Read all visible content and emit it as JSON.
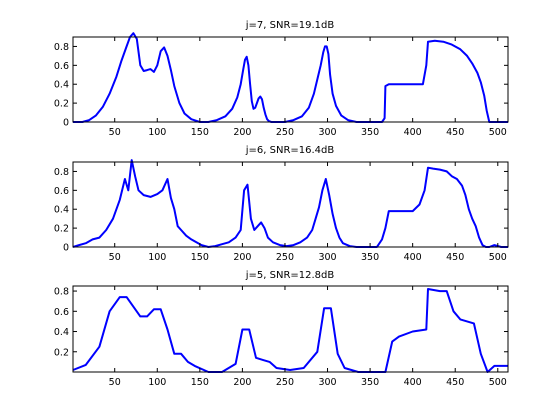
{
  "chart_data": [
    {
      "type": "line",
      "title": "j=7, SNR=19.1dB",
      "xlim": [
        1,
        512
      ],
      "ylim": [
        0,
        0.9
      ],
      "xticks": [
        50,
        100,
        150,
        200,
        250,
        300,
        350,
        400,
        450,
        500
      ],
      "yticks": [
        0,
        0.2,
        0.4,
        0.6,
        0.8
      ],
      "ytick_labels": [
        "0",
        "0.2",
        "0.4",
        "0.6",
        "0.8"
      ],
      "series": [
        {
          "color": "#0000ff",
          "x": [
            1,
            12,
            20,
            28,
            36,
            44,
            52,
            58,
            64,
            68,
            72,
            76,
            80,
            84,
            88,
            92,
            96,
            100,
            104,
            108,
            112,
            116,
            120,
            126,
            132,
            140,
            150,
            160,
            170,
            180,
            188,
            194,
            198,
            201,
            203,
            205,
            207,
            209,
            211,
            213,
            215,
            217,
            219,
            221,
            223,
            225,
            227,
            229,
            231,
            234,
            240,
            250,
            260,
            270,
            278,
            284,
            288,
            292,
            295,
            297,
            299,
            301,
            303,
            306,
            310,
            316,
            324,
            334,
            344,
            356,
            364,
            367,
            368,
            372,
            380,
            392,
            404,
            412,
            416,
            418,
            426,
            436,
            446,
            456,
            464,
            470,
            476,
            480,
            484,
            487,
            490,
            494,
            500,
            512
          ],
          "y": [
            0.0,
            0.0,
            0.02,
            0.07,
            0.16,
            0.3,
            0.48,
            0.65,
            0.8,
            0.9,
            0.94,
            0.88,
            0.6,
            0.54,
            0.55,
            0.56,
            0.53,
            0.6,
            0.75,
            0.79,
            0.7,
            0.55,
            0.38,
            0.2,
            0.09,
            0.03,
            0.0,
            0.0,
            0.02,
            0.06,
            0.14,
            0.26,
            0.4,
            0.56,
            0.66,
            0.69,
            0.6,
            0.4,
            0.22,
            0.14,
            0.15,
            0.2,
            0.25,
            0.27,
            0.24,
            0.15,
            0.08,
            0.03,
            0.01,
            0.0,
            0.0,
            0.0,
            0.02,
            0.06,
            0.15,
            0.3,
            0.45,
            0.6,
            0.74,
            0.8,
            0.8,
            0.72,
            0.5,
            0.3,
            0.17,
            0.07,
            0.02,
            0.0,
            0.0,
            0.0,
            0.0,
            0.04,
            0.38,
            0.4,
            0.4,
            0.4,
            0.4,
            0.4,
            0.6,
            0.85,
            0.86,
            0.85,
            0.82,
            0.77,
            0.7,
            0.62,
            0.52,
            0.42,
            0.28,
            0.12,
            0.0,
            0.0,
            0.0,
            0.0
          ]
        }
      ]
    },
    {
      "type": "line",
      "title": "j=6, SNR=16.4dB",
      "xlim": [
        1,
        512
      ],
      "ylim": [
        0,
        0.9
      ],
      "xticks": [
        50,
        100,
        150,
        200,
        250,
        300,
        350,
        400,
        450,
        500
      ],
      "yticks": [
        0,
        0.2,
        0.4,
        0.6,
        0.8
      ],
      "ytick_labels": [
        "0",
        "0.2",
        "0.4",
        "0.6",
        "0.8"
      ],
      "series": [
        {
          "color": "#0000ff",
          "x": [
            1,
            8,
            16,
            24,
            32,
            40,
            48,
            56,
            62,
            66,
            70,
            74,
            78,
            84,
            92,
            100,
            106,
            112,
            116,
            120,
            124,
            128,
            134,
            140,
            146,
            152,
            160,
            168,
            176,
            184,
            192,
            198,
            202,
            206,
            210,
            214,
            218,
            222,
            226,
            230,
            236,
            244,
            252,
            260,
            268,
            276,
            282,
            286,
            290,
            294,
            298,
            302,
            306,
            310,
            314,
            318,
            326,
            334,
            342,
            350,
            358,
            364,
            368,
            372,
            380,
            390,
            400,
            408,
            414,
            418,
            424,
            432,
            440,
            446,
            452,
            458,
            462,
            466,
            470,
            474,
            478,
            482,
            486,
            490,
            496,
            504,
            512
          ],
          "y": [
            0.0,
            0.02,
            0.04,
            0.08,
            0.1,
            0.18,
            0.3,
            0.5,
            0.72,
            0.6,
            0.92,
            0.75,
            0.6,
            0.55,
            0.53,
            0.56,
            0.6,
            0.72,
            0.52,
            0.4,
            0.22,
            0.18,
            0.12,
            0.08,
            0.05,
            0.02,
            0.0,
            0.01,
            0.03,
            0.05,
            0.1,
            0.18,
            0.6,
            0.66,
            0.3,
            0.18,
            0.22,
            0.26,
            0.2,
            0.1,
            0.05,
            0.02,
            0.01,
            0.02,
            0.05,
            0.1,
            0.18,
            0.3,
            0.42,
            0.6,
            0.72,
            0.55,
            0.35,
            0.2,
            0.1,
            0.04,
            0.01,
            0.0,
            0.0,
            0.0,
            0.0,
            0.08,
            0.2,
            0.38,
            0.38,
            0.38,
            0.38,
            0.45,
            0.6,
            0.84,
            0.83,
            0.82,
            0.8,
            0.75,
            0.72,
            0.65,
            0.55,
            0.4,
            0.3,
            0.22,
            0.1,
            0.02,
            0.0,
            0.0,
            0.02,
            0.0,
            0.0
          ]
        }
      ]
    },
    {
      "type": "line",
      "title": "j=5, SNR=12.8dB",
      "xlim": [
        1,
        512
      ],
      "ylim": [
        0,
        0.85
      ],
      "xticks": [
        50,
        100,
        150,
        200,
        250,
        300,
        350,
        400,
        450,
        500
      ],
      "yticks": [
        0.2,
        0.4,
        0.6,
        0.8
      ],
      "ytick_labels": [
        "0.2",
        "0.4",
        "0.6",
        "0.8"
      ],
      "series": [
        {
          "color": "#0000ff",
          "x": [
            1,
            16,
            32,
            44,
            56,
            64,
            80,
            88,
            96,
            104,
            112,
            120,
            128,
            136,
            144,
            160,
            176,
            192,
            200,
            208,
            216,
            224,
            232,
            240,
            256,
            272,
            288,
            296,
            304,
            312,
            320,
            336,
            352,
            368,
            376,
            384,
            400,
            416,
            418,
            432,
            440,
            448,
            456,
            464,
            472,
            480,
            488,
            496,
            504,
            512
          ],
          "y": [
            0.02,
            0.07,
            0.25,
            0.6,
            0.74,
            0.74,
            0.55,
            0.55,
            0.62,
            0.62,
            0.42,
            0.18,
            0.18,
            0.1,
            0.06,
            0.0,
            0.0,
            0.08,
            0.42,
            0.42,
            0.14,
            0.12,
            0.1,
            0.04,
            0.02,
            0.04,
            0.2,
            0.63,
            0.63,
            0.18,
            0.04,
            0.0,
            0.0,
            0.0,
            0.3,
            0.35,
            0.4,
            0.42,
            0.82,
            0.8,
            0.8,
            0.6,
            0.52,
            0.5,
            0.48,
            0.18,
            0.0,
            0.06,
            0.06,
            0.06
          ]
        }
      ]
    }
  ]
}
